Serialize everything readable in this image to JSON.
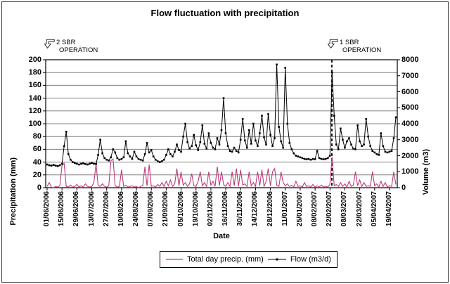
{
  "title": "Flow fluctuation with precipitation",
  "annotations": {
    "left": {
      "line1": "2 SBR",
      "line2": "OPERATION"
    },
    "right": {
      "line1": "1 SBR",
      "line2": "OPERATION"
    }
  },
  "legend": {
    "precip_label": "Total day precip. (mm)",
    "flow_label": "Flow (m3/d)"
  },
  "colors": {
    "precip": "#C0397B",
    "flow": "#000000",
    "grid": "#808080",
    "axis": "#000000"
  },
  "chart_data": {
    "type": "line",
    "title": "Flow fluctuation with precipitation",
    "xlabel": "Date",
    "ylabel_left": "Precipitation (mm)",
    "ylabel_right": "Volume (m3)",
    "ylim_left": [
      0,
      200
    ],
    "ytick_step_left": 20,
    "yticks_left": [
      0,
      20,
      40,
      60,
      80,
      100,
      120,
      140,
      160,
      180,
      200
    ],
    "ylim_right": [
      0,
      8000
    ],
    "ytick_step_right": 1000,
    "yticks_right": [
      0,
      1000,
      2000,
      3000,
      4000,
      5000,
      6000,
      7000,
      8000
    ],
    "grid": "horizontal",
    "legend_position": "bottom",
    "x_tick_labels": [
      "01/06/2006",
      "15/06/2006",
      "29/06/2006",
      "13/07/2006",
      "27/07/2006",
      "10/08/2006",
      "24/08/2006",
      "07/09/2006",
      "21/09/2006",
      "05/10/2006",
      "19/10/2006",
      "02/11/2006",
      "16/11/2006",
      "30/11/2006",
      "14/12/2006",
      "28/12/2006",
      "11/01/2007",
      "25/01/2007",
      "08/02/2007",
      "22/02/2007",
      "08/03/2007",
      "22/03/2007",
      "05/04/2007",
      "19/04/2007"
    ],
    "event_line": {
      "label": "1 SBR OPERATION",
      "x_frac": 0.814,
      "style": "dashed",
      "near_x_label": "22/02/2007"
    },
    "annotations_on_chart": [
      {
        "text": "2 SBR OPERATION",
        "near_x_label": "01/06/2006"
      },
      {
        "text": "1 SBR OPERATION",
        "near_x_label": "22/02/2007"
      }
    ],
    "sample_interval_days": 2,
    "series": [
      {
        "name": "Total day precip. (mm)",
        "axis": "left",
        "marker": "none",
        "values": [
          2,
          8,
          1,
          0,
          2,
          1,
          3,
          35,
          38,
          2,
          1,
          4,
          1,
          2,
          5,
          1,
          3,
          1,
          6,
          2,
          1,
          2,
          8,
          37,
          3,
          2,
          6,
          2,
          1,
          3,
          42,
          45,
          3,
          1,
          2,
          28,
          2,
          4,
          1,
          2,
          3,
          1,
          2,
          0,
          2,
          4,
          33,
          3,
          36,
          2,
          3,
          1,
          5,
          2,
          8,
          2,
          10,
          3,
          12,
          2,
          6,
          30,
          3,
          25,
          4,
          8,
          2,
          6,
          22,
          3,
          2,
          10,
          25,
          3,
          8,
          2,
          25,
          4,
          10,
          2,
          33,
          3,
          25,
          5,
          2,
          8,
          2,
          25,
          3,
          30,
          2,
          28,
          4,
          6,
          2,
          25,
          3,
          8,
          2,
          25,
          3,
          28,
          2,
          10,
          30,
          3,
          25,
          30,
          4,
          2,
          25,
          8,
          3,
          6,
          2,
          4,
          1,
          10,
          2,
          3,
          1,
          8,
          2,
          3,
          1,
          5,
          1,
          3,
          1,
          4,
          1,
          2,
          1,
          5,
          48,
          3,
          5,
          2,
          8,
          2,
          6,
          1,
          10,
          2,
          4,
          25,
          3,
          12,
          2,
          8,
          2,
          3,
          2,
          25,
          3,
          6,
          1,
          10,
          2,
          8,
          1,
          3,
          2,
          25,
          5
        ]
      },
      {
        "name": "Flow (m3/d)",
        "axis": "right",
        "marker": "square",
        "values": [
          1450,
          1400,
          1380,
          1420,
          1380,
          1350,
          1400,
          1500,
          2600,
          3500,
          2100,
          1750,
          1600,
          1550,
          1500,
          1450,
          1500,
          1520,
          1480,
          1450,
          1500,
          1550,
          1500,
          1480,
          2050,
          3000,
          2150,
          1850,
          1750,
          1700,
          1900,
          2400,
          2200,
          1850,
          1750,
          1800,
          1900,
          2900,
          2150,
          1950,
          1800,
          2250,
          1950,
          1800,
          1750,
          1700,
          2100,
          2800,
          2200,
          2350,
          1950,
          1750,
          1650,
          1600,
          1650,
          1750,
          2050,
          2400,
          2100,
          1950,
          2250,
          2700,
          2350,
          2250,
          3200,
          4000,
          2850,
          2450,
          2600,
          3300,
          2650,
          2350,
          2850,
          3900,
          2750,
          2450,
          3400,
          2800,
          2500,
          2400,
          3100,
          2700,
          3600,
          5600,
          3400,
          2600,
          2300,
          2250,
          2500,
          2300,
          2200,
          3000,
          4300,
          2950,
          2500,
          3600,
          2750,
          4000,
          2950,
          2600,
          3400,
          4500,
          3150,
          2700,
          4600,
          3300,
          2600,
          3100,
          7700,
          3800,
          2900,
          2500,
          7500,
          4000,
          2800,
          2400,
          2150,
          2000,
          1950,
          1900,
          1850,
          1800,
          1780,
          1800,
          1750,
          1800,
          1780,
          2300,
          1850,
          1800,
          1780,
          1800,
          1850,
          2000,
          7200,
          4500,
          2700,
          2400,
          3700,
          3000,
          2500,
          2900,
          3100,
          2700,
          2450,
          2400,
          3900,
          2900,
          2600,
          2700,
          4300,
          3200,
          2600,
          2300,
          2200,
          2100,
          2050,
          3400,
          2600,
          2250,
          2200,
          2250,
          2300,
          3100,
          4400
        ]
      }
    ]
  }
}
